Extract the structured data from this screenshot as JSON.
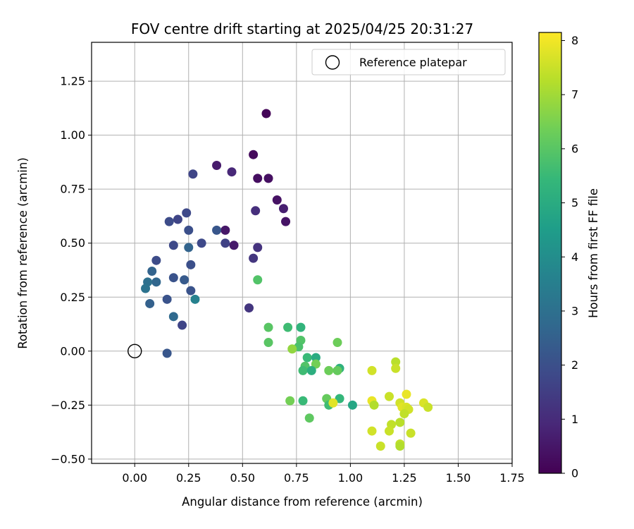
{
  "chart_data": {
    "type": "scatter",
    "title": "FOV centre drift starting at 2025/04/25 20:31:27",
    "xlabel": "Angular distance from reference (arcmin)",
    "ylabel": "Rotation from reference (arcmin)",
    "xlim": [
      -0.2,
      1.75
    ],
    "ylim": [
      -0.52,
      1.43
    ],
    "xticks": [
      "0.00",
      "0.25",
      "0.50",
      "0.75",
      "1.00",
      "1.25",
      "1.50",
      "1.75"
    ],
    "yticks": [
      "−0.50",
      "−0.25",
      "0.00",
      "0.25",
      "0.50",
      "0.75",
      "1.00",
      "1.25"
    ],
    "grid": true,
    "legend": {
      "placement": "top-right",
      "entries": [
        "Reference platepar"
      ]
    },
    "reference_point": {
      "x": 0.0,
      "y": 0.0
    },
    "colorbar": {
      "label": "Hours from first FF file",
      "min": 0,
      "max": 8.15,
      "ticks": [
        "0",
        "1",
        "2",
        "3",
        "4",
        "5",
        "6",
        "7",
        "8"
      ],
      "colormap": [
        "#440154",
        "#482878",
        "#3e4989",
        "#31688e",
        "#26828e",
        "#1f9e89",
        "#35b779",
        "#6ece58",
        "#b5de2b",
        "#fde725"
      ]
    },
    "points": [
      {
        "x": 0.61,
        "y": 1.1,
        "t": 0.1
      },
      {
        "x": 0.55,
        "y": 0.91,
        "t": 0.2
      },
      {
        "x": 0.57,
        "y": 0.8,
        "t": 0.3
      },
      {
        "x": 0.62,
        "y": 0.8,
        "t": 0.35
      },
      {
        "x": 0.66,
        "y": 0.7,
        "t": 0.4
      },
      {
        "x": 0.7,
        "y": 0.6,
        "t": 0.45
      },
      {
        "x": 0.42,
        "y": 0.56,
        "t": 0.5
      },
      {
        "x": 0.46,
        "y": 0.49,
        "t": 0.55
      },
      {
        "x": 0.38,
        "y": 0.86,
        "t": 0.6
      },
      {
        "x": 0.69,
        "y": 0.66,
        "t": 0.7
      },
      {
        "x": 0.45,
        "y": 0.83,
        "t": 0.9
      },
      {
        "x": 0.56,
        "y": 0.65,
        "t": 1.1
      },
      {
        "x": 0.57,
        "y": 0.48,
        "t": 1.2
      },
      {
        "x": 0.55,
        "y": 0.43,
        "t": 1.3
      },
      {
        "x": 0.53,
        "y": 0.2,
        "t": 1.3
      },
      {
        "x": 0.42,
        "y": 0.5,
        "t": 1.6
      },
      {
        "x": 0.27,
        "y": 0.82,
        "t": 1.7
      },
      {
        "x": 0.22,
        "y": 0.12,
        "t": 1.7
      },
      {
        "x": 0.31,
        "y": 0.5,
        "t": 1.8
      },
      {
        "x": 0.38,
        "y": 0.56,
        "t": 2.2
      },
      {
        "x": 0.24,
        "y": 0.64,
        "t": 1.8
      },
      {
        "x": 0.2,
        "y": 0.61,
        "t": 1.7
      },
      {
        "x": 0.16,
        "y": 0.6,
        "t": 1.9
      },
      {
        "x": 0.25,
        "y": 0.56,
        "t": 2.0
      },
      {
        "x": 0.18,
        "y": 0.49,
        "t": 1.8
      },
      {
        "x": 0.1,
        "y": 0.42,
        "t": 1.9
      },
      {
        "x": 0.26,
        "y": 0.4,
        "t": 2.0
      },
      {
        "x": 0.18,
        "y": 0.34,
        "t": 2.1
      },
      {
        "x": 0.23,
        "y": 0.33,
        "t": 2.3
      },
      {
        "x": 0.26,
        "y": 0.28,
        "t": 2.1
      },
      {
        "x": 0.15,
        "y": 0.24,
        "t": 2.1
      },
      {
        "x": 0.15,
        "y": -0.01,
        "t": 2.2
      },
      {
        "x": 0.25,
        "y": 0.48,
        "t": 2.6
      },
      {
        "x": 0.08,
        "y": 0.37,
        "t": 2.6
      },
      {
        "x": 0.1,
        "y": 0.32,
        "t": 2.7
      },
      {
        "x": 0.06,
        "y": 0.32,
        "t": 3.0
      },
      {
        "x": 0.05,
        "y": 0.29,
        "t": 3.1
      },
      {
        "x": 0.07,
        "y": 0.22,
        "t": 2.5
      },
      {
        "x": 0.18,
        "y": 0.16,
        "t": 2.8
      },
      {
        "x": 0.28,
        "y": 0.24,
        "t": 3.6
      },
      {
        "x": 0.57,
        "y": 0.33,
        "t": 5.9
      },
      {
        "x": 0.62,
        "y": 0.11,
        "t": 6.0
      },
      {
        "x": 0.62,
        "y": 0.04,
        "t": 6.0
      },
      {
        "x": 0.71,
        "y": 0.11,
        "t": 5.6
      },
      {
        "x": 0.77,
        "y": 0.11,
        "t": 5.3
      },
      {
        "x": 0.77,
        "y": 0.05,
        "t": 5.9
      },
      {
        "x": 0.76,
        "y": 0.02,
        "t": 5.8
      },
      {
        "x": 0.8,
        "y": -0.03,
        "t": 5.5
      },
      {
        "x": 0.84,
        "y": -0.03,
        "t": 5.0
      },
      {
        "x": 0.84,
        "y": -0.06,
        "t": 6.4
      },
      {
        "x": 0.79,
        "y": -0.07,
        "t": 5.9
      },
      {
        "x": 0.78,
        "y": -0.09,
        "t": 5.6
      },
      {
        "x": 0.82,
        "y": -0.09,
        "t": 5.1
      },
      {
        "x": 0.95,
        "y": -0.08,
        "t": 5.2
      },
      {
        "x": 0.9,
        "y": -0.09,
        "t": 6.3
      },
      {
        "x": 0.94,
        "y": -0.09,
        "t": 6.2
      },
      {
        "x": 0.94,
        "y": 0.04,
        "t": 6.3
      },
      {
        "x": 0.73,
        "y": 0.01,
        "t": 6.8
      },
      {
        "x": 0.72,
        "y": -0.23,
        "t": 6.4
      },
      {
        "x": 0.78,
        "y": -0.23,
        "t": 5.5
      },
      {
        "x": 0.81,
        "y": -0.31,
        "t": 6.1
      },
      {
        "x": 0.89,
        "y": -0.22,
        "t": 6.2
      },
      {
        "x": 0.9,
        "y": -0.25,
        "t": 5.6
      },
      {
        "x": 0.95,
        "y": -0.22,
        "t": 5.4
      },
      {
        "x": 1.01,
        "y": -0.25,
        "t": 4.8
      },
      {
        "x": 0.92,
        "y": -0.24,
        "t": 7.8
      },
      {
        "x": 1.1,
        "y": -0.09,
        "t": 7.6
      },
      {
        "x": 1.21,
        "y": -0.05,
        "t": 7.3
      },
      {
        "x": 1.21,
        "y": -0.08,
        "t": 7.5
      },
      {
        "x": 1.1,
        "y": -0.23,
        "t": 7.9
      },
      {
        "x": 1.11,
        "y": -0.25,
        "t": 7.2
      },
      {
        "x": 1.18,
        "y": -0.21,
        "t": 7.5
      },
      {
        "x": 1.23,
        "y": -0.24,
        "t": 7.6
      },
      {
        "x": 1.24,
        "y": -0.26,
        "t": 7.8
      },
      {
        "x": 1.26,
        "y": -0.2,
        "t": 7.9
      },
      {
        "x": 1.26,
        "y": -0.26,
        "t": 7.7
      },
      {
        "x": 1.27,
        "y": -0.27,
        "t": 7.6
      },
      {
        "x": 1.25,
        "y": -0.29,
        "t": 7.4
      },
      {
        "x": 1.23,
        "y": -0.33,
        "t": 7.3
      },
      {
        "x": 1.19,
        "y": -0.34,
        "t": 7.4
      },
      {
        "x": 1.18,
        "y": -0.37,
        "t": 7.5
      },
      {
        "x": 1.1,
        "y": -0.37,
        "t": 7.6
      },
      {
        "x": 1.28,
        "y": -0.38,
        "t": 7.5
      },
      {
        "x": 1.14,
        "y": -0.44,
        "t": 7.5
      },
      {
        "x": 1.23,
        "y": -0.43,
        "t": 7.4
      },
      {
        "x": 1.23,
        "y": -0.44,
        "t": 7.2
      },
      {
        "x": 1.34,
        "y": -0.24,
        "t": 7.7
      },
      {
        "x": 1.36,
        "y": -0.26,
        "t": 7.5
      }
    ]
  }
}
